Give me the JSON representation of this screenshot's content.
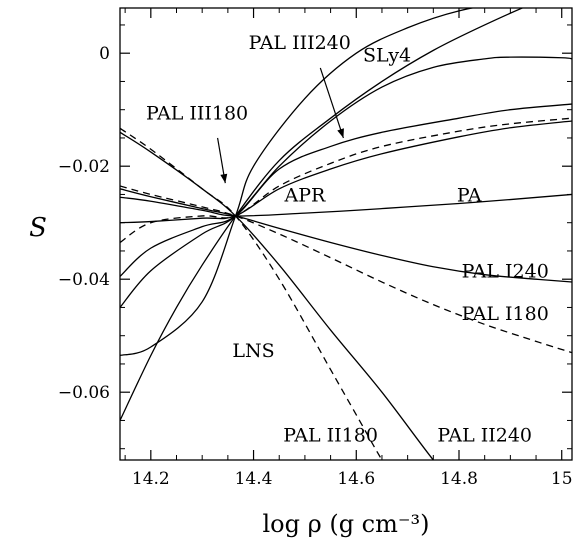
{
  "chart_data": {
    "type": "line",
    "xlabel": "log ρ (g cm⁻³)",
    "ylabel": "S",
    "xlim": [
      14.14,
      15.02
    ],
    "ylim": [
      -0.072,
      0.008
    ],
    "x_ticks": [
      14.2,
      14.4,
      14.6,
      14.8,
      15.0
    ],
    "x_tick_labels": [
      "14.2",
      "14.4",
      "14.6",
      "14.8",
      "15"
    ],
    "y_ticks": [
      0,
      -0.02,
      -0.04,
      -0.06
    ],
    "y_tick_labels": [
      "0",
      "−0.02",
      "−0.04",
      "−0.06"
    ],
    "grid": false,
    "series": [
      {
        "name": "PAL III240",
        "style": "solid",
        "x": [
          14.14,
          14.2,
          14.3,
          14.365,
          14.45,
          14.55,
          14.65,
          14.8,
          14.9,
          15.02
        ],
        "y": [
          -0.0395,
          -0.0345,
          -0.0307,
          -0.0288,
          -0.0205,
          -0.0165,
          -0.014,
          -0.0115,
          -0.01,
          -0.009
        ]
      },
      {
        "name": "PAL III180",
        "style": "dashed",
        "x": [
          14.14,
          14.2,
          14.3,
          14.365,
          14.45,
          14.55,
          14.65,
          14.8,
          14.9,
          15.02
        ],
        "y": [
          -0.0335,
          -0.03,
          -0.0288,
          -0.0288,
          -0.0235,
          -0.0195,
          -0.0165,
          -0.0138,
          -0.0125,
          -0.0115
        ]
      },
      {
        "name": "SLy4",
        "style": "solid",
        "x": [
          14.14,
          14.2,
          14.3,
          14.365,
          14.45,
          14.55,
          14.65,
          14.75,
          14.85,
          14.9,
          15.0,
          15.02
        ],
        "y": [
          -0.045,
          -0.0385,
          -0.032,
          -0.0288,
          -0.02,
          -0.012,
          -0.006,
          -0.0025,
          -0.001,
          -0.0007,
          -0.0008,
          -0.001
        ]
      },
      {
        "name": "APR",
        "style": "solid",
        "x": [
          14.14,
          14.2,
          14.3,
          14.365,
          14.45,
          14.55,
          14.65,
          14.8,
          14.9,
          15.02
        ],
        "y": [
          -0.03,
          -0.0298,
          -0.0292,
          -0.0288,
          -0.024,
          -0.0205,
          -0.0178,
          -0.0148,
          -0.0132,
          -0.012
        ]
      },
      {
        "name": "PA",
        "style": "solid",
        "x": [
          14.14,
          14.2,
          14.3,
          14.365,
          14.5,
          14.6,
          14.7,
          14.8,
          14.9,
          15.02
        ],
        "y": [
          -0.0255,
          -0.0262,
          -0.0278,
          -0.0288,
          -0.0283,
          -0.0278,
          -0.0272,
          -0.0266,
          -0.0259,
          -0.025
        ]
      },
      {
        "name": "PAL I240",
        "style": "solid",
        "x": [
          14.14,
          14.2,
          14.3,
          14.365,
          14.45,
          14.55,
          14.65,
          14.75,
          14.85,
          14.95,
          15.02
        ],
        "y": [
          -0.024,
          -0.0254,
          -0.0275,
          -0.0288,
          -0.031,
          -0.0335,
          -0.0358,
          -0.0378,
          -0.0392,
          -0.04,
          -0.0405
        ]
      },
      {
        "name": "PAL I180",
        "style": "dashed",
        "x": [
          14.14,
          14.2,
          14.3,
          14.365,
          14.45,
          14.55,
          14.65,
          14.75,
          14.85,
          14.95,
          15.02
        ],
        "y": [
          -0.0235,
          -0.025,
          -0.0272,
          -0.0288,
          -0.032,
          -0.0362,
          -0.0405,
          -0.0445,
          -0.048,
          -0.051,
          -0.053
        ]
      },
      {
        "name": "LNS",
        "style": "solid",
        "x": [
          14.14,
          14.2,
          14.25,
          14.3,
          14.365,
          14.45,
          14.55,
          14.65,
          14.75,
          14.85,
          14.95,
          15.02
        ],
        "y": [
          -0.065,
          -0.0535,
          -0.045,
          -0.0375,
          -0.0288,
          -0.019,
          -0.0115,
          -0.005,
          0.0005,
          0.005,
          0.009,
          0.011
        ]
      },
      {
        "name": "PAL II240",
        "style": "solid",
        "x": [
          14.14,
          14.2,
          14.3,
          14.365,
          14.45,
          14.55,
          14.65,
          14.75,
          14.8
        ],
        "y": [
          -0.014,
          -0.0175,
          -0.024,
          -0.0288,
          -0.0375,
          -0.049,
          -0.06,
          -0.072,
          -0.077
        ]
      },
      {
        "name": "PAL II180",
        "style": "dashed",
        "x": [
          14.14,
          14.2,
          14.3,
          14.365,
          14.45,
          14.55,
          14.6,
          14.65,
          14.68
        ],
        "y": [
          -0.0133,
          -0.017,
          -0.024,
          -0.0288,
          -0.04,
          -0.056,
          -0.064,
          -0.072,
          -0.076
        ]
      },
      {
        "name": "",
        "style": "solid",
        "x": [
          14.14,
          14.2,
          14.3,
          14.365,
          14.4,
          14.5,
          14.6,
          14.7,
          14.8,
          14.9,
          15.0,
          15.02
        ],
        "y": [
          -0.0535,
          -0.052,
          -0.044,
          -0.0288,
          -0.02,
          -0.008,
          0.0,
          0.0045,
          0.0075,
          0.009,
          0.0095,
          0.0096
        ]
      }
    ],
    "labels": [
      {
        "text": "PAL III240",
        "x": 14.49,
        "y": 0.002
      },
      {
        "text": "SLy4",
        "x": 14.66,
        "y": -0.0002
      },
      {
        "text": "PAL III180",
        "x": 14.29,
        "y": -0.0105
      },
      {
        "text": "APR",
        "x": 14.5,
        "y": -0.025
      },
      {
        "text": "PA",
        "x": 14.82,
        "y": -0.025
      },
      {
        "text": "PAL I240",
        "x": 14.89,
        "y": -0.0385
      },
      {
        "text": "PAL I180",
        "x": 14.89,
        "y": -0.046
      },
      {
        "text": "LNS",
        "x": 14.4,
        "y": -0.0525
      },
      {
        "text": "PAL II180",
        "x": 14.55,
        "y": -0.0675
      },
      {
        "text": "PAL II240",
        "x": 14.85,
        "y": -0.0675
      }
    ],
    "annotations": [
      {
        "target": "PAL III240",
        "from": [
          14.53,
          -0.0026
        ],
        "to": [
          14.575,
          -0.015
        ]
      },
      {
        "target": "PAL III180",
        "from": [
          14.33,
          -0.015
        ],
        "to": [
          14.345,
          -0.023
        ]
      }
    ]
  }
}
